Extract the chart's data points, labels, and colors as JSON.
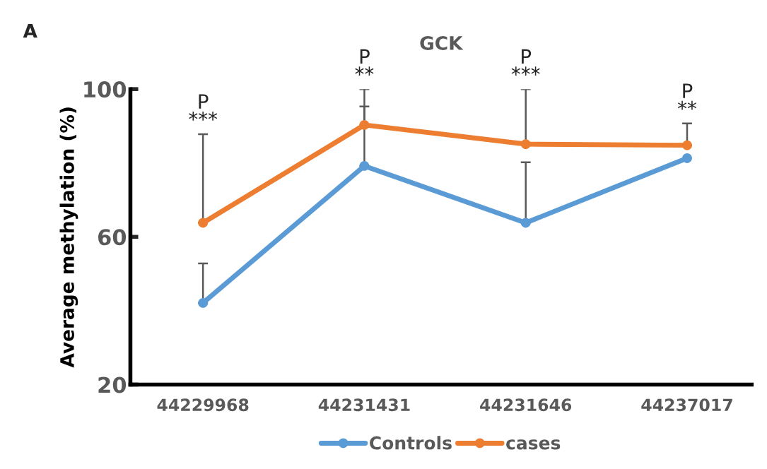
{
  "chart_data": {
    "type": "line",
    "title": "GCK",
    "ylabel": "Average methylation (%)",
    "categories": [
      "44229968",
      "44231431",
      "44231646",
      "44237017"
    ],
    "series": [
      {
        "name": "Controls",
        "color": "#5b9bd5",
        "values": [
          42.1,
          79.2,
          63.8,
          81.3
        ],
        "errors": [
          [
            42.1,
            52.8
          ],
          [
            79.2,
            100
          ],
          [
            63.8,
            80.2
          ],
          null
        ]
      },
      {
        "name": "cases",
        "color": "#ed7d31",
        "values": [
          63.8,
          90.3,
          85.1,
          84.8
        ],
        "errors": [
          [
            63.8,
            87.8
          ],
          [
            90.3,
            95.3
          ],
          [
            85.1,
            100
          ],
          [
            84.8,
            90.7
          ]
        ]
      }
    ],
    "ylim": [
      20,
      100
    ],
    "yticks": [
      20,
      60,
      100
    ],
    "grid": false,
    "legend": "bottom",
    "marker": "circle",
    "line_style": "solid",
    "annotations": [
      "A",
      "P\n***",
      "P\n**",
      "P\n***",
      "P\n**"
    ]
  }
}
